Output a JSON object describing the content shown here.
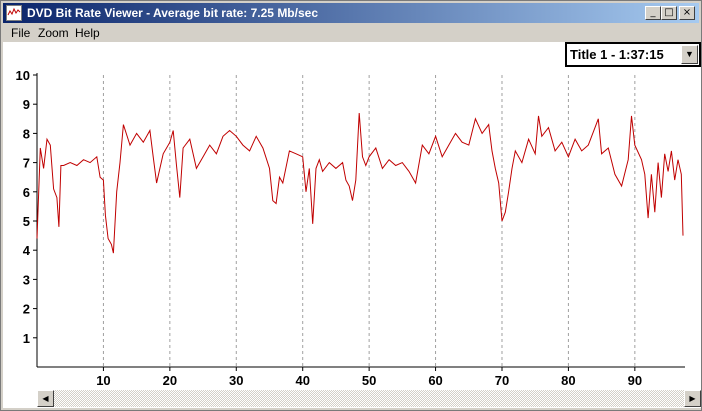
{
  "window": {
    "title": "DVD Bit Rate Viewer - Average bit rate: 7.25 Mb/sec",
    "minimize_icon": "minimize-icon",
    "maximize_icon": "maximize-icon",
    "close_icon": "close-icon"
  },
  "menu": {
    "items": [
      "File",
      "Zoom",
      "Help"
    ]
  },
  "title_select": {
    "selected": "Title 1 - 1:37:15"
  },
  "colors": {
    "series": "#c00000",
    "grid": "#a0a0a0"
  },
  "chart_data": {
    "type": "line",
    "title": "",
    "xlabel": "",
    "ylabel": "",
    "xlim": [
      0,
      97.25
    ],
    "ylim": [
      0,
      10
    ],
    "xticks": [
      10,
      20,
      30,
      40,
      50,
      60,
      70,
      80,
      90
    ],
    "yticks": [
      1,
      2,
      3,
      4,
      5,
      6,
      7,
      8,
      9,
      10
    ],
    "grid": "vertical dashed at x ticks",
    "series": [
      {
        "values": [
          [
            0,
            4.4
          ],
          [
            0.5,
            7.5
          ],
          [
            1,
            6.8
          ],
          [
            1.5,
            7.8
          ],
          [
            2,
            7.6
          ],
          [
            2.5,
            6.1
          ],
          [
            3,
            5.8
          ],
          [
            3.3,
            4.8
          ],
          [
            3.6,
            6.9
          ],
          [
            4,
            6.9
          ],
          [
            5,
            7.0
          ],
          [
            6,
            6.9
          ],
          [
            7,
            7.1
          ],
          [
            8,
            7.0
          ],
          [
            9,
            7.2
          ],
          [
            9.5,
            6.5
          ],
          [
            10,
            6.4
          ],
          [
            10.3,
            5.2
          ],
          [
            10.7,
            4.4
          ],
          [
            11.2,
            4.2
          ],
          [
            11.5,
            3.9
          ],
          [
            12,
            6.0
          ],
          [
            12.5,
            7.0
          ],
          [
            13,
            8.3
          ],
          [
            14,
            7.6
          ],
          [
            15,
            8.0
          ],
          [
            16,
            7.7
          ],
          [
            17,
            8.1
          ],
          [
            17.5,
            7.2
          ],
          [
            18,
            6.3
          ],
          [
            18.5,
            6.8
          ],
          [
            19,
            7.3
          ],
          [
            20,
            7.7
          ],
          [
            20.5,
            8.1
          ],
          [
            21,
            6.9
          ],
          [
            21.5,
            5.8
          ],
          [
            22,
            7.5
          ],
          [
            23,
            7.8
          ],
          [
            24,
            6.8
          ],
          [
            25,
            7.2
          ],
          [
            26,
            7.6
          ],
          [
            27,
            7.3
          ],
          [
            28,
            7.9
          ],
          [
            29,
            8.1
          ],
          [
            30,
            7.9
          ],
          [
            31,
            7.6
          ],
          [
            32,
            7.4
          ],
          [
            33,
            7.9
          ],
          [
            34,
            7.5
          ],
          [
            35,
            6.8
          ],
          [
            35.5,
            5.7
          ],
          [
            36,
            5.6
          ],
          [
            36.5,
            6.5
          ],
          [
            37,
            6.3
          ],
          [
            38,
            7.4
          ],
          [
            39,
            7.3
          ],
          [
            40,
            7.2
          ],
          [
            40.5,
            6.0
          ],
          [
            41,
            6.8
          ],
          [
            41.5,
            4.9
          ],
          [
            42,
            6.8
          ],
          [
            42.5,
            7.1
          ],
          [
            43,
            6.7
          ],
          [
            44,
            7.0
          ],
          [
            45,
            6.8
          ],
          [
            46,
            7.0
          ],
          [
            46.5,
            6.4
          ],
          [
            47,
            6.2
          ],
          [
            47.5,
            5.7
          ],
          [
            48,
            6.4
          ],
          [
            48.5,
            8.7
          ],
          [
            49,
            7.2
          ],
          [
            49.5,
            6.9
          ],
          [
            50,
            7.2
          ],
          [
            51,
            7.5
          ],
          [
            52,
            6.8
          ],
          [
            53,
            7.1
          ],
          [
            54,
            6.9
          ],
          [
            55,
            7.0
          ],
          [
            56,
            6.7
          ],
          [
            57,
            6.3
          ],
          [
            58,
            7.6
          ],
          [
            59,
            7.3
          ],
          [
            60,
            7.9
          ],
          [
            61,
            7.2
          ],
          [
            62,
            7.6
          ],
          [
            63,
            8.0
          ],
          [
            64,
            7.7
          ],
          [
            65,
            7.6
          ],
          [
            66,
            8.5
          ],
          [
            67,
            8.0
          ],
          [
            68,
            8.3
          ],
          [
            68.5,
            7.4
          ],
          [
            69,
            6.8
          ],
          [
            69.5,
            6.3
          ],
          [
            70,
            5.0
          ],
          [
            70.5,
            5.3
          ],
          [
            71,
            6.0
          ],
          [
            71.5,
            6.8
          ],
          [
            72,
            7.4
          ],
          [
            73,
            7.0
          ],
          [
            74,
            7.8
          ],
          [
            75,
            7.3
          ],
          [
            75.5,
            8.6
          ],
          [
            76,
            7.9
          ],
          [
            77,
            8.2
          ],
          [
            78,
            7.4
          ],
          [
            79,
            7.7
          ],
          [
            80,
            7.2
          ],
          [
            81,
            7.8
          ],
          [
            82,
            7.4
          ],
          [
            83,
            7.6
          ],
          [
            84,
            8.2
          ],
          [
            84.5,
            8.5
          ],
          [
            85,
            7.3
          ],
          [
            86,
            7.5
          ],
          [
            87,
            6.6
          ],
          [
            88,
            6.2
          ],
          [
            89,
            7.1
          ],
          [
            89.5,
            8.6
          ],
          [
            90,
            7.6
          ],
          [
            91,
            7.1
          ],
          [
            91.5,
            6.6
          ],
          [
            92,
            5.1
          ],
          [
            92.5,
            6.6
          ],
          [
            93,
            5.3
          ],
          [
            93.5,
            7.0
          ],
          [
            94,
            5.8
          ],
          [
            94.5,
            7.3
          ],
          [
            95,
            6.7
          ],
          [
            95.5,
            7.4
          ],
          [
            96,
            6.4
          ],
          [
            96.5,
            7.1
          ],
          [
            97,
            6.6
          ],
          [
            97.25,
            4.5
          ]
        ]
      }
    ]
  }
}
